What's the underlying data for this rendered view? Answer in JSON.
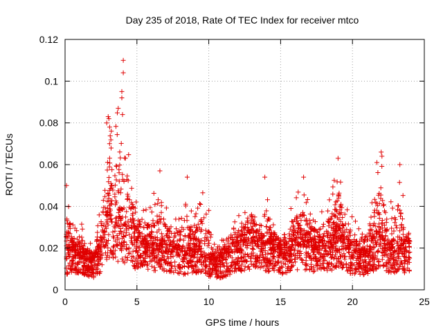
{
  "chart_data": {
    "type": "scatter",
    "title": "Day 235 of 2018, Rate Of TEC Index for receiver mtco",
    "xlabel": "GPS time / hours",
    "ylabel": "ROTI / TECUs",
    "xlim": [
      0,
      25
    ],
    "ylim": [
      0,
      0.12
    ],
    "xticks": [
      0,
      5,
      10,
      15,
      20,
      25
    ],
    "xtick_labels": [
      "0",
      "5",
      "10",
      "15",
      "20",
      "25"
    ],
    "yticks": [
      0,
      0.02,
      0.04,
      0.06,
      0.08,
      0.1,
      0.12
    ],
    "ytick_labels": [
      "0",
      "0.02",
      "0.04",
      "0.06",
      "0.08",
      "0.1",
      "0.12"
    ],
    "grid": true,
    "marker": "plus",
    "color": "#e00000",
    "series": [
      {
        "name": "ROTI",
        "envelope_note": "dense band of points; typical level and upper envelope (hours, TECU/s)",
        "profile": [
          [
            0.0,
            0.015,
            0.05
          ],
          [
            0.5,
            0.018,
            0.04
          ],
          [
            1.0,
            0.016,
            0.035
          ],
          [
            1.5,
            0.014,
            0.025
          ],
          [
            2.0,
            0.013,
            0.02
          ],
          [
            2.5,
            0.018,
            0.045
          ],
          [
            3.0,
            0.035,
            0.084
          ],
          [
            3.5,
            0.03,
            0.08
          ],
          [
            4.0,
            0.03,
            0.11
          ],
          [
            4.5,
            0.025,
            0.06
          ],
          [
            5.0,
            0.02,
            0.045
          ],
          [
            5.5,
            0.02,
            0.04
          ],
          [
            6.0,
            0.018,
            0.04
          ],
          [
            6.5,
            0.02,
            0.058
          ],
          [
            7.0,
            0.018,
            0.04
          ],
          [
            7.5,
            0.017,
            0.035
          ],
          [
            8.0,
            0.016,
            0.045
          ],
          [
            8.5,
            0.016,
            0.054
          ],
          [
            9.0,
            0.016,
            0.035
          ],
          [
            9.5,
            0.018,
            0.05
          ],
          [
            10.0,
            0.014,
            0.04
          ],
          [
            10.5,
            0.012,
            0.025
          ],
          [
            11.0,
            0.013,
            0.025
          ],
          [
            11.5,
            0.016,
            0.035
          ],
          [
            12.0,
            0.018,
            0.035
          ],
          [
            12.5,
            0.02,
            0.04
          ],
          [
            13.0,
            0.022,
            0.048
          ],
          [
            13.5,
            0.02,
            0.04
          ],
          [
            14.0,
            0.02,
            0.054
          ],
          [
            14.5,
            0.018,
            0.035
          ],
          [
            15.0,
            0.016,
            0.03
          ],
          [
            15.5,
            0.018,
            0.035
          ],
          [
            16.0,
            0.02,
            0.045
          ],
          [
            16.5,
            0.022,
            0.054
          ],
          [
            17.0,
            0.02,
            0.04
          ],
          [
            17.5,
            0.018,
            0.035
          ],
          [
            18.0,
            0.02,
            0.04
          ],
          [
            18.5,
            0.02,
            0.045
          ],
          [
            19.0,
            0.025,
            0.062
          ],
          [
            19.5,
            0.02,
            0.04
          ],
          [
            20.0,
            0.016,
            0.035
          ],
          [
            20.5,
            0.015,
            0.03
          ],
          [
            21.0,
            0.016,
            0.035
          ],
          [
            21.5,
            0.02,
            0.055
          ],
          [
            22.0,
            0.025,
            0.066
          ],
          [
            22.5,
            0.018,
            0.04
          ],
          [
            23.0,
            0.018,
            0.05
          ],
          [
            23.3,
            0.02,
            0.06
          ],
          [
            23.6,
            0.018,
            0.04
          ],
          [
            24.0,
            0.018,
            0.03
          ]
        ],
        "notable_points": [
          [
            4.05,
            0.11
          ],
          [
            4.05,
            0.104
          ],
          [
            3.95,
            0.095
          ],
          [
            3.95,
            0.092
          ],
          [
            3.7,
            0.087
          ],
          [
            4.0,
            0.084
          ],
          [
            3.0,
            0.083
          ],
          [
            3.05,
            0.082
          ],
          [
            2.9,
            0.08
          ],
          [
            3.1,
            0.078
          ],
          [
            6.6,
            0.057
          ],
          [
            8.5,
            0.054
          ],
          [
            13.9,
            0.054
          ],
          [
            19.0,
            0.063
          ],
          [
            22.0,
            0.066
          ],
          [
            22.05,
            0.064
          ],
          [
            23.3,
            0.06
          ],
          [
            21.7,
            0.061
          ],
          [
            0.1,
            0.05
          ],
          [
            16.6,
            0.054
          ]
        ]
      }
    ]
  }
}
